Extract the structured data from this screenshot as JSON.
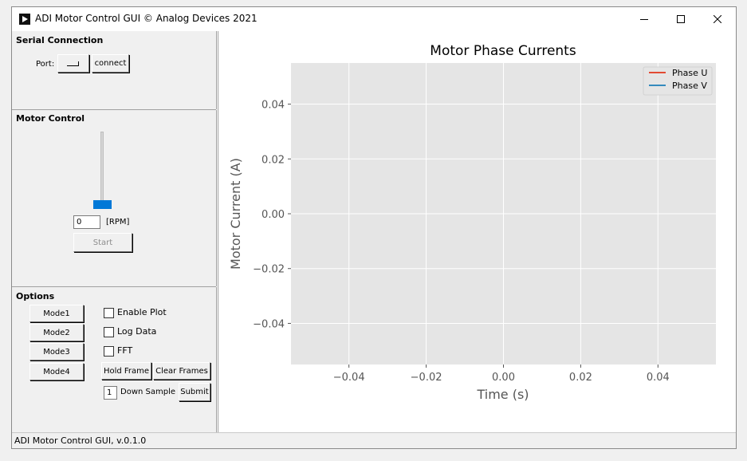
{
  "window": {
    "title": "ADI Motor Control GUI © Analog Devices 2021",
    "buttons": [
      "minimize",
      "maximize",
      "close"
    ]
  },
  "serial": {
    "title": "Serial Connection",
    "port_label": "Port:",
    "connect_label": "connect"
  },
  "motor": {
    "title": "Motor Control",
    "rpm_value": "0",
    "rpm_unit": "[RPM]",
    "start_label": "Start",
    "slider_level": 0
  },
  "options": {
    "title": "Options",
    "modes": [
      "Mode1",
      "Mode2",
      "Mode3",
      "Mode4"
    ],
    "checkboxes": [
      {
        "label": "Enable Plot",
        "checked": false
      },
      {
        "label": "Log Data",
        "checked": false
      },
      {
        "label": "FFT",
        "checked": false
      }
    ],
    "hold_frame_label": "Hold Frame",
    "clear_frames_label": "Clear Frames",
    "down_sample_value": "1",
    "down_sample_label": "Down Sample",
    "submit_label": "Submit"
  },
  "status": {
    "text": "ADI Motor Control GUI, v.0.1.0"
  },
  "chart_data": {
    "type": "line",
    "title": "Motor Phase Currents",
    "xlabel": "Time (s)",
    "ylabel": "Motor Current (A)",
    "xlim": [
      -0.055,
      0.055
    ],
    "ylim": [
      -0.055,
      0.055
    ],
    "xticks": [
      -0.04,
      -0.02,
      0.0,
      0.02,
      0.04
    ],
    "yticks": [
      -0.04,
      -0.02,
      0.0,
      0.02,
      0.04
    ],
    "xtick_labels": [
      "−0.04",
      "−0.02",
      "0.00",
      "0.02",
      "0.04"
    ],
    "ytick_labels": [
      "−0.04",
      "−0.02",
      "0.00",
      "0.02",
      "0.04"
    ],
    "grid": true,
    "legend_position": "top-right",
    "background": "#e5e5e5",
    "series": [
      {
        "name": "Phase U",
        "color": "#e24a33",
        "x": [],
        "y": []
      },
      {
        "name": "Phase V",
        "color": "#348abd",
        "x": [],
        "y": []
      }
    ]
  },
  "colors": {
    "slider_handle": "#0078d7",
    "plot_background": "#e5e5e5",
    "grid": "#ffffff"
  }
}
